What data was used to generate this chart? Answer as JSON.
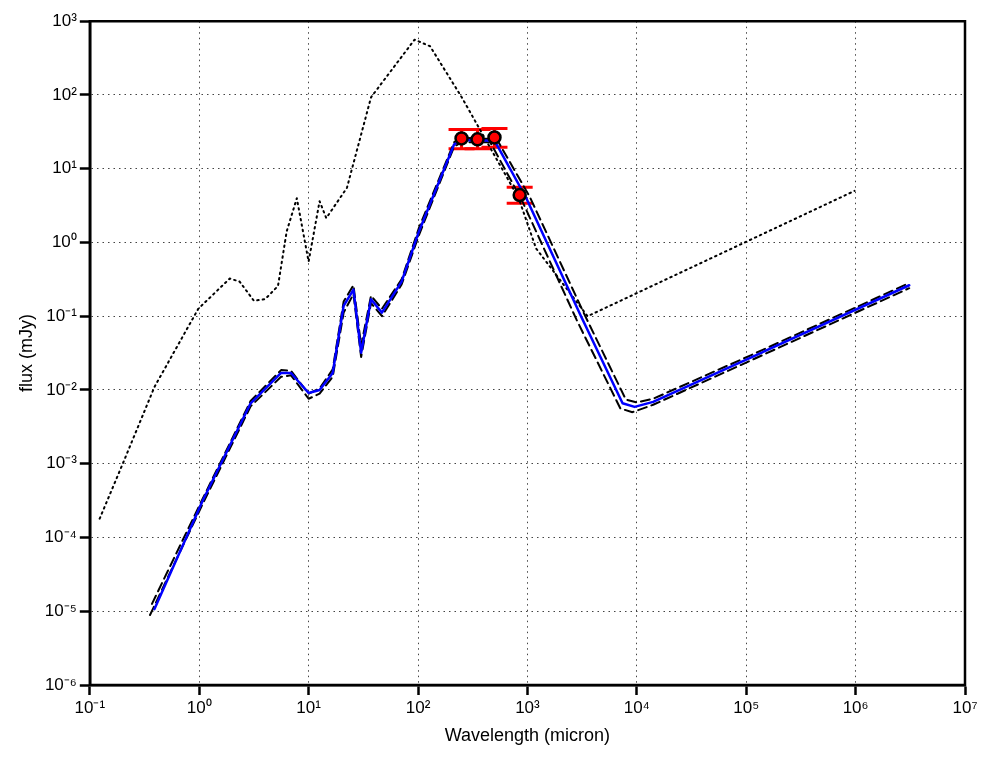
{
  "chart_data": {
    "type": "line",
    "xlabel": "Wavelength (micron)",
    "ylabel": "flux (mJy)",
    "log": "xy",
    "grid": true,
    "legend": false,
    "xlim": [
      0.1,
      10000000
    ],
    "ylim": [
      1e-06,
      1000
    ],
    "xticks": [
      {
        "value": 0.1,
        "label": "10⁻¹"
      },
      {
        "value": 1,
        "label": "10⁰"
      },
      {
        "value": 10,
        "label": "10¹"
      },
      {
        "value": 100,
        "label": "10²"
      },
      {
        "value": 1000,
        "label": "10³"
      },
      {
        "value": 10000,
        "label": "10⁴"
      },
      {
        "value": 100000,
        "label": "10⁵"
      },
      {
        "value": 1000000,
        "label": "10⁶"
      },
      {
        "value": 10000000,
        "label": "10⁷"
      }
    ],
    "yticks": [
      {
        "value": 1e-06,
        "label": "10⁻⁶"
      },
      {
        "value": 1e-05,
        "label": "10⁻⁵"
      },
      {
        "value": 0.0001,
        "label": "10⁻⁴"
      },
      {
        "value": 0.001,
        "label": "10⁻³"
      },
      {
        "value": 0.01,
        "label": "10⁻²"
      },
      {
        "value": 0.1,
        "label": "10⁻¹"
      },
      {
        "value": 1,
        "label": "10⁰"
      },
      {
        "value": 10,
        "label": "10¹"
      },
      {
        "value": 100,
        "label": "10²"
      },
      {
        "value": 1000,
        "label": "10³"
      }
    ],
    "series": [
      {
        "color": "#000000",
        "line_style": "dotted",
        "marker": "none",
        "x": [
          0.123,
          0.2,
          0.39,
          0.98,
          1.9,
          2.34,
          3.16,
          4.0,
          5.25,
          6.3,
          7.8,
          10,
          12.6,
          14.5,
          22.4,
          37.2,
          93,
          129,
          251,
          832,
          1200,
          3550,
          977000
        ],
        "values": [
          0.00018,
          0.001,
          0.011,
          0.126,
          0.324,
          0.295,
          0.162,
          0.17,
          0.257,
          1.41,
          3.98,
          0.55,
          3.63,
          2.14,
          5.5,
          93,
          562,
          457,
          93,
          3.98,
          0.83,
          0.1,
          5.0
        ]
      },
      {
        "color": "#000000",
        "line_style": "dashed",
        "marker": "none",
        "x": [
          0.37,
          1.07,
          2.95,
          5.6,
          6.9,
          10,
          12.6,
          16.6,
          20.9,
          25.7,
          30.2,
          37.2,
          46.8,
          70.8,
          102,
          214,
          263,
          525,
          1050,
          3310,
          7940,
          10000,
          14100,
          110000,
          3090000
        ],
        "values": [
          1.26e-05,
          0.00033,
          0.0071,
          0.0186,
          0.0182,
          0.0089,
          0.0105,
          0.019,
          0.158,
          0.263,
          0.04,
          0.19,
          0.126,
          0.316,
          1.58,
          22.9,
          26.3,
          25.1,
          4.17,
          0.107,
          0.0074,
          0.0068,
          0.0076,
          0.0295,
          0.282
        ]
      },
      {
        "color": "#000000",
        "line_style": "dashed",
        "marker": "none",
        "x": [
          0.355,
          1.07,
          2.95,
          5.6,
          6.9,
          10,
          12.6,
          16.6,
          20.9,
          25.7,
          30.2,
          37.2,
          46.8,
          70.8,
          102,
          214,
          251,
          457,
          891,
          2820,
          7080,
          9120,
          14100,
          110000,
          3090000
        ],
        "values": [
          8.9e-06,
          0.00028,
          0.006,
          0.0151,
          0.0158,
          0.0076,
          0.0089,
          0.0151,
          0.112,
          0.2,
          0.028,
          0.151,
          0.1,
          0.269,
          1.26,
          20,
          22.9,
          22.9,
          3.72,
          0.089,
          0.0056,
          0.005,
          0.0063,
          0.0251,
          0.24
        ]
      },
      {
        "color": "#0000ff",
        "line_style": "solid",
        "marker": "none",
        "x": [
          0.39,
          1.07,
          2.95,
          5.6,
          6.9,
          10,
          12.6,
          16.6,
          20.9,
          25.7,
          30.2,
          37.2,
          46.8,
          70.8,
          102,
          214,
          251,
          501,
          977,
          3090,
          7410,
          9550,
          14100,
          110000,
          3090000
        ],
        "values": [
          1.07e-05,
          0.00031,
          0.0066,
          0.017,
          0.017,
          0.0091,
          0.01,
          0.017,
          0.138,
          0.23,
          0.032,
          0.17,
          0.112,
          0.295,
          1.41,
          21.4,
          24.5,
          24,
          3.98,
          0.1,
          0.0066,
          0.0059,
          0.0069,
          0.0275,
          0.263
        ]
      },
      {
        "type": "scatter",
        "color": "#ff0000",
        "marker": "circle",
        "x": [
          250,
          350,
          500,
          850
        ],
        "values": [
          25.7,
          25,
          26.5,
          4.4
        ],
        "errors": [
          [
            18.6,
            34
          ],
          [
            18.6,
            34
          ],
          [
            19.5,
            35
          ],
          [
            3.4,
            5.6
          ]
        ]
      }
    ]
  }
}
